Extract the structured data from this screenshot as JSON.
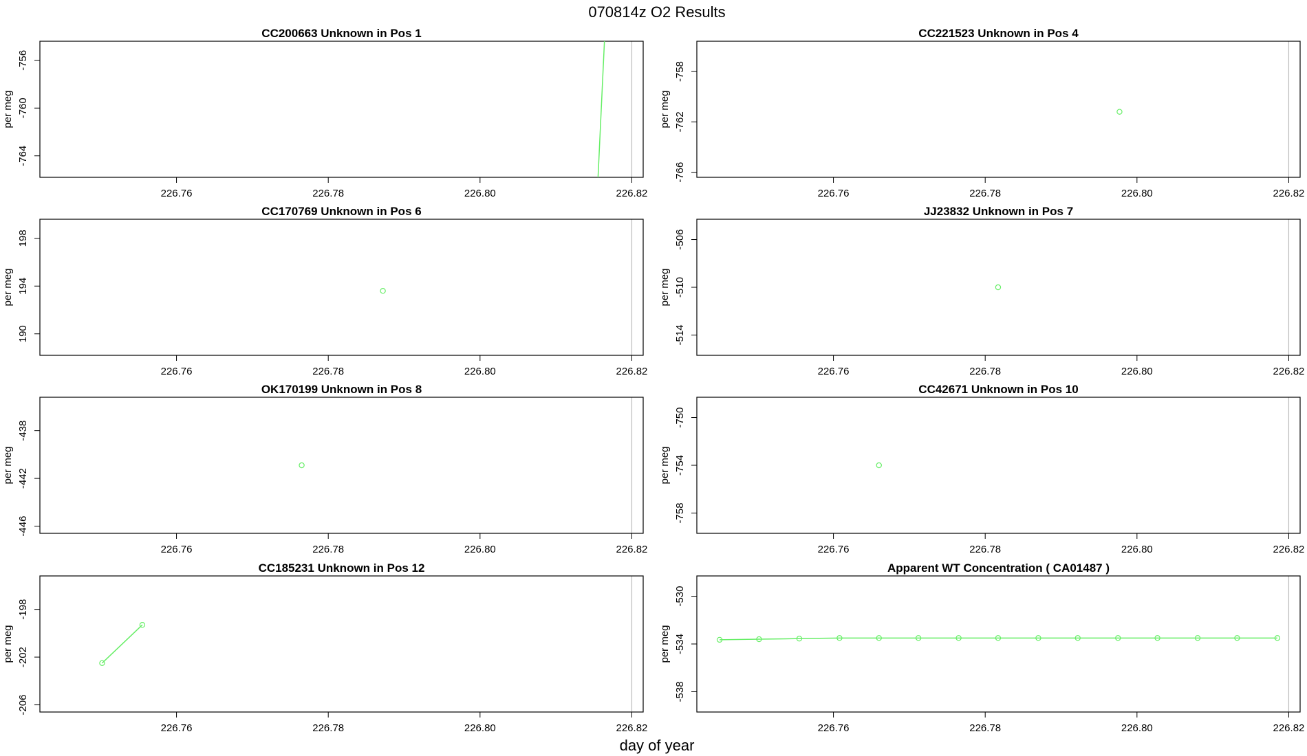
{
  "page": {
    "title": "070814z  O2 Results",
    "x_axis_label": "day of year"
  },
  "colors": {
    "series": "#66ee66",
    "frame": "#000000",
    "ref_line": "#bbbbbb"
  },
  "chart_data": [
    {
      "type": "line",
      "title": "CC200663    Unknown in Pos 1",
      "xlabel": "",
      "ylabel": "per meg",
      "xlim": [
        226.742,
        226.8215
      ],
      "ylim": [
        -765.8,
        -754.4
      ],
      "x_ticks": [
        "226.76",
        "226.78",
        "226.80",
        "226.82"
      ],
      "y_ticks": [
        "-756",
        "-760",
        "-764"
      ],
      "ref_x": 226.82,
      "show_markers": false,
      "series": [
        {
          "x": [
            226.8155,
            226.8165
          ],
          "y": [
            -766.5,
            -753.0
          ]
        }
      ]
    },
    {
      "type": "scatter",
      "title": "CC221523    Unknown in Pos 4",
      "xlabel": "",
      "ylabel": "per meg",
      "xlim": [
        226.742,
        226.8215
      ],
      "ylim": [
        -766.4,
        -755.6
      ],
      "x_ticks": [
        "226.76",
        "226.78",
        "226.80",
        "226.82"
      ],
      "y_ticks": [
        "-758",
        "-762",
        "-766"
      ],
      "ref_x": 226.82,
      "show_markers": true,
      "series": [
        {
          "x": [
            226.7977
          ],
          "y": [
            -761.2
          ]
        }
      ]
    },
    {
      "type": "scatter",
      "title": "CC170769    Unknown in Pos 6",
      "xlabel": "",
      "ylabel": "per meg",
      "xlim": [
        226.742,
        226.8215
      ],
      "ylim": [
        188.2,
        199.6
      ],
      "x_ticks": [
        "226.76",
        "226.78",
        "226.80",
        "226.82"
      ],
      "y_ticks": [
        "190",
        "194",
        "198"
      ],
      "ref_x": 226.82,
      "show_markers": true,
      "series": [
        {
          "x": [
            226.7872
          ],
          "y": [
            193.6
          ]
        }
      ]
    },
    {
      "type": "scatter",
      "title": "JJ23832    Unknown in Pos 7",
      "xlabel": "",
      "ylabel": "per meg",
      "xlim": [
        226.742,
        226.8215
      ],
      "ylim": [
        -515.7,
        -504.3
      ],
      "x_ticks": [
        "226.76",
        "226.78",
        "226.80",
        "226.82"
      ],
      "y_ticks": [
        "-506",
        "-510",
        "-514"
      ],
      "ref_x": 226.82,
      "show_markers": true,
      "series": [
        {
          "x": [
            226.7817
          ],
          "y": [
            -510.0
          ]
        }
      ]
    },
    {
      "type": "scatter",
      "title": "OK170199    Unknown in Pos 8",
      "xlabel": "",
      "ylabel": "per meg",
      "xlim": [
        226.742,
        226.8215
      ],
      "ylim": [
        -446.6,
        -435.2
      ],
      "x_ticks": [
        "226.76",
        "226.78",
        "226.80",
        "226.82"
      ],
      "y_ticks": [
        "-438",
        "-442",
        "-446"
      ],
      "ref_x": 226.82,
      "show_markers": true,
      "series": [
        {
          "x": [
            226.7765
          ],
          "y": [
            -440.9
          ]
        }
      ]
    },
    {
      "type": "scatter",
      "title": "CC42671    Unknown in Pos 10",
      "xlabel": "",
      "ylabel": "per meg",
      "xlim": [
        226.742,
        226.8215
      ],
      "ylim": [
        -759.7,
        -748.3
      ],
      "x_ticks": [
        "226.76",
        "226.78",
        "226.80",
        "226.82"
      ],
      "y_ticks": [
        "-750",
        "-754",
        "-758"
      ],
      "ref_x": 226.82,
      "show_markers": true,
      "series": [
        {
          "x": [
            226.766
          ],
          "y": [
            -754.0
          ]
        }
      ]
    },
    {
      "type": "line",
      "title": "CC185231    Unknown in Pos 12",
      "xlabel": "",
      "ylabel": "per meg",
      "xlim": [
        226.742,
        226.8215
      ],
      "ylim": [
        -206.6,
        -195.2
      ],
      "x_ticks": [
        "226.76",
        "226.78",
        "226.80",
        "226.82"
      ],
      "y_ticks": [
        "-198",
        "-202",
        "-206"
      ],
      "ref_x": 226.82,
      "show_markers": true,
      "series": [
        {
          "x": [
            226.7502,
            226.7555
          ],
          "y": [
            -202.5,
            -199.3
          ]
        }
      ]
    },
    {
      "type": "line",
      "title": "Apparent WT Concentration ( CA01487 )",
      "xlabel": "",
      "ylabel": "per meg",
      "xlim": [
        226.742,
        226.8215
      ],
      "ylim": [
        -539.7,
        -528.3
      ],
      "x_ticks": [
        "226.76",
        "226.78",
        "226.80",
        "226.82"
      ],
      "y_ticks": [
        "-530",
        "-534",
        "-538"
      ],
      "ref_x": 226.82,
      "show_markers": true,
      "series": [
        {
          "x": [
            226.745,
            226.7502,
            226.7555,
            226.7608,
            226.766,
            226.7712,
            226.7765,
            226.7817,
            226.787,
            226.7922,
            226.7975,
            226.8027,
            226.808,
            226.8132,
            226.8185
          ],
          "y": [
            -533.65,
            -533.6,
            -533.55,
            -533.5,
            -533.5,
            -533.5,
            -533.5,
            -533.5,
            -533.5,
            -533.5,
            -533.5,
            -533.5,
            -533.5,
            -533.5,
            -533.5
          ]
        }
      ]
    }
  ]
}
